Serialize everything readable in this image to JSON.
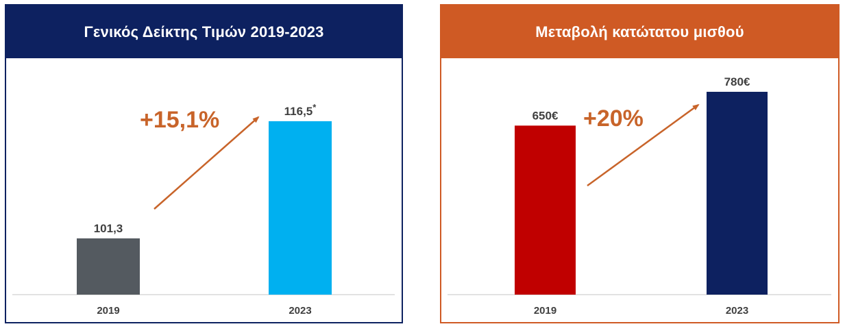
{
  "chart_data": [
    {
      "type": "bar",
      "title": "Γενικός Δείκτης Τιμών 2019-2023",
      "categories": [
        "2019",
        "2023"
      ],
      "values": [
        101.3,
        116.5
      ],
      "value_labels": [
        "101,3",
        "116,5"
      ],
      "footnote_mark": "*",
      "change_label": "+15,1%",
      "bar_colors": [
        "#545a60",
        "#00b0f0"
      ],
      "header_color": "#0d2160",
      "accent_color": "#c8642a",
      "ylim": [
        94,
        122
      ],
      "grid": false
    },
    {
      "type": "bar",
      "title": "Μεταβολή κατώτατου μισθού",
      "categories": [
        "2019",
        "2023"
      ],
      "values": [
        650,
        780
      ],
      "value_labels": [
        "650€",
        "780€"
      ],
      "change_label": "+20%",
      "bar_colors": [
        "#c00000",
        "#0d2160"
      ],
      "header_color": "#cf5a24",
      "accent_color": "#c8642a",
      "ylim": [
        0,
        830
      ],
      "grid": false
    }
  ]
}
